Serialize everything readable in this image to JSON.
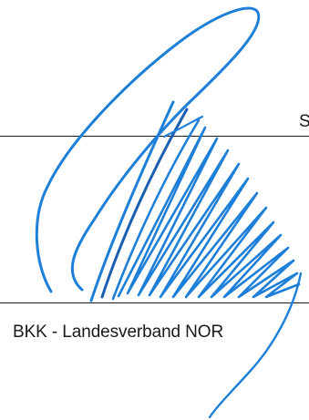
{
  "document": {
    "top_line_fragment": "S",
    "organization_name": "BKK - Landesverband NOR"
  },
  "signature": {
    "kind": "handwritten signature",
    "ink_color": "#1e7fd8",
    "ink_color_dark": "#1a5fb0"
  }
}
